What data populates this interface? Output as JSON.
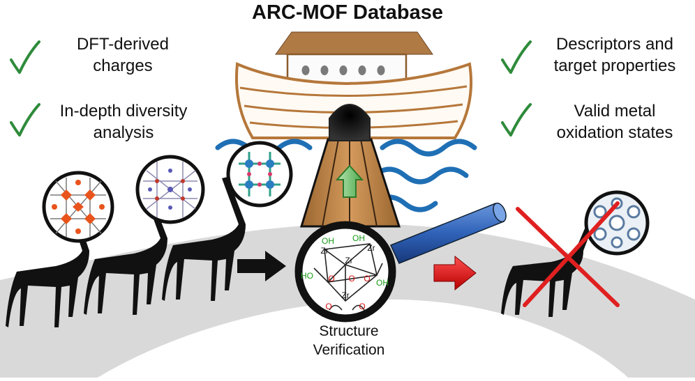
{
  "title": "ARC-MOF Database",
  "features": {
    "left": [
      {
        "line1": "DFT-derived",
        "line2": "charges"
      },
      {
        "line1": "In-depth diversity",
        "line2": "analysis"
      }
    ],
    "right": [
      {
        "line1": "Descriptors and",
        "line2": "target properties"
      },
      {
        "line1": "Valid metal",
        "line2": "oxidation states"
      }
    ]
  },
  "verification": {
    "caption_line1": "Structure",
    "caption_line2": "Verification",
    "labels": {
      "oh_top_left": "OH",
      "oh_top_right": "OH",
      "oh_left": "HO",
      "oh_right": "OH",
      "zr": "Zr",
      "o": "O"
    }
  },
  "colors": {
    "check": "#2e8b3a",
    "ark_hull": "#b5773a",
    "ark_roof": "#b07a45",
    "water": "#1f6fb5",
    "ramp": "#c98a4a",
    "up_arrow": "#6cc46c",
    "reject": "#e02020",
    "magnifier_handle": "#2f62b8",
    "path": "#d8d8d8",
    "giraffe": "#111111"
  }
}
